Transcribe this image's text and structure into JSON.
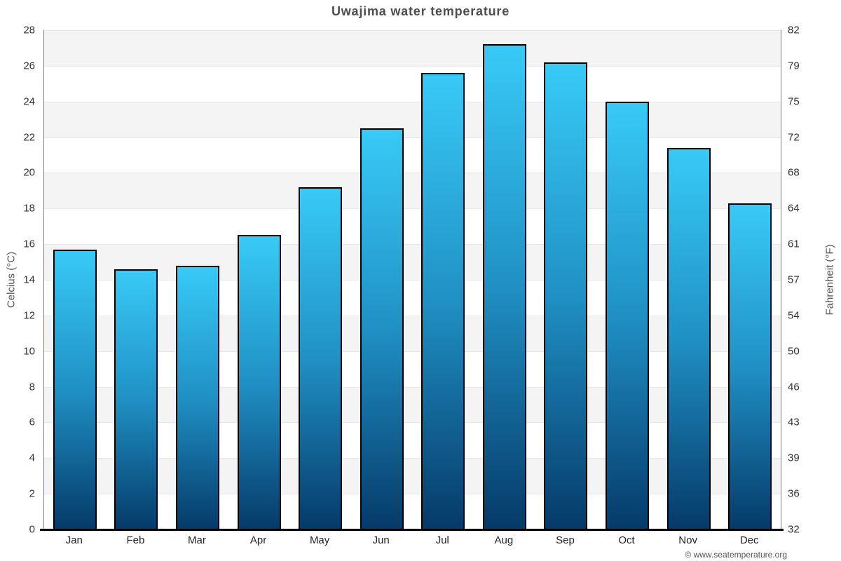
{
  "page": {
    "title": "Uwajima water temperature",
    "footer": "© www.seatemperature.org"
  },
  "chart_data": {
    "type": "bar",
    "title": "Uwajima water temperature",
    "categories": [
      "Jan",
      "Feb",
      "Mar",
      "Apr",
      "May",
      "Jun",
      "Jul",
      "Aug",
      "Sep",
      "Oct",
      "Nov",
      "Dec"
    ],
    "values": [
      15.7,
      14.6,
      14.8,
      16.5,
      19.2,
      22.5,
      25.6,
      27.2,
      26.2,
      24.0,
      21.4,
      18.3
    ],
    "series_name": "Water temperature (°C)",
    "ylabel": "Celcius (°C)",
    "ylabel_right": "Fahrenheit (°F)",
    "xlabel": "",
    "ylim": [
      0,
      28
    ],
    "ytick_step": 2,
    "yticks_left": [
      0,
      2,
      4,
      6,
      8,
      10,
      12,
      14,
      16,
      18,
      20,
      22,
      24,
      26,
      28
    ],
    "yticks_right_labels": [
      "32",
      "36",
      "39",
      "43",
      "46",
      "50",
      "54",
      "57",
      "61",
      "64",
      "68",
      "72",
      "75",
      "79",
      "82"
    ],
    "grid": "horizontal-on",
    "legend": "none",
    "alternating_bands": true,
    "footer": "© www.seatemperature.org",
    "colors": {
      "bar_gradient_top": "#38caf7",
      "bar_gradient_mid": "#2090c4",
      "bar_gradient_bottom": "#053a69",
      "bar_border": "#000000",
      "band_gray": "#f4f4f4",
      "band_white": "#ffffff",
      "gridline": "#e7e7e7",
      "axis_line": "#808080",
      "bottom_axis_line": "#000000",
      "title_color": "#4d4d4d",
      "tick_label_color": "#333333",
      "axis_title_color": "#555555",
      "footer_color": "#555555"
    }
  }
}
